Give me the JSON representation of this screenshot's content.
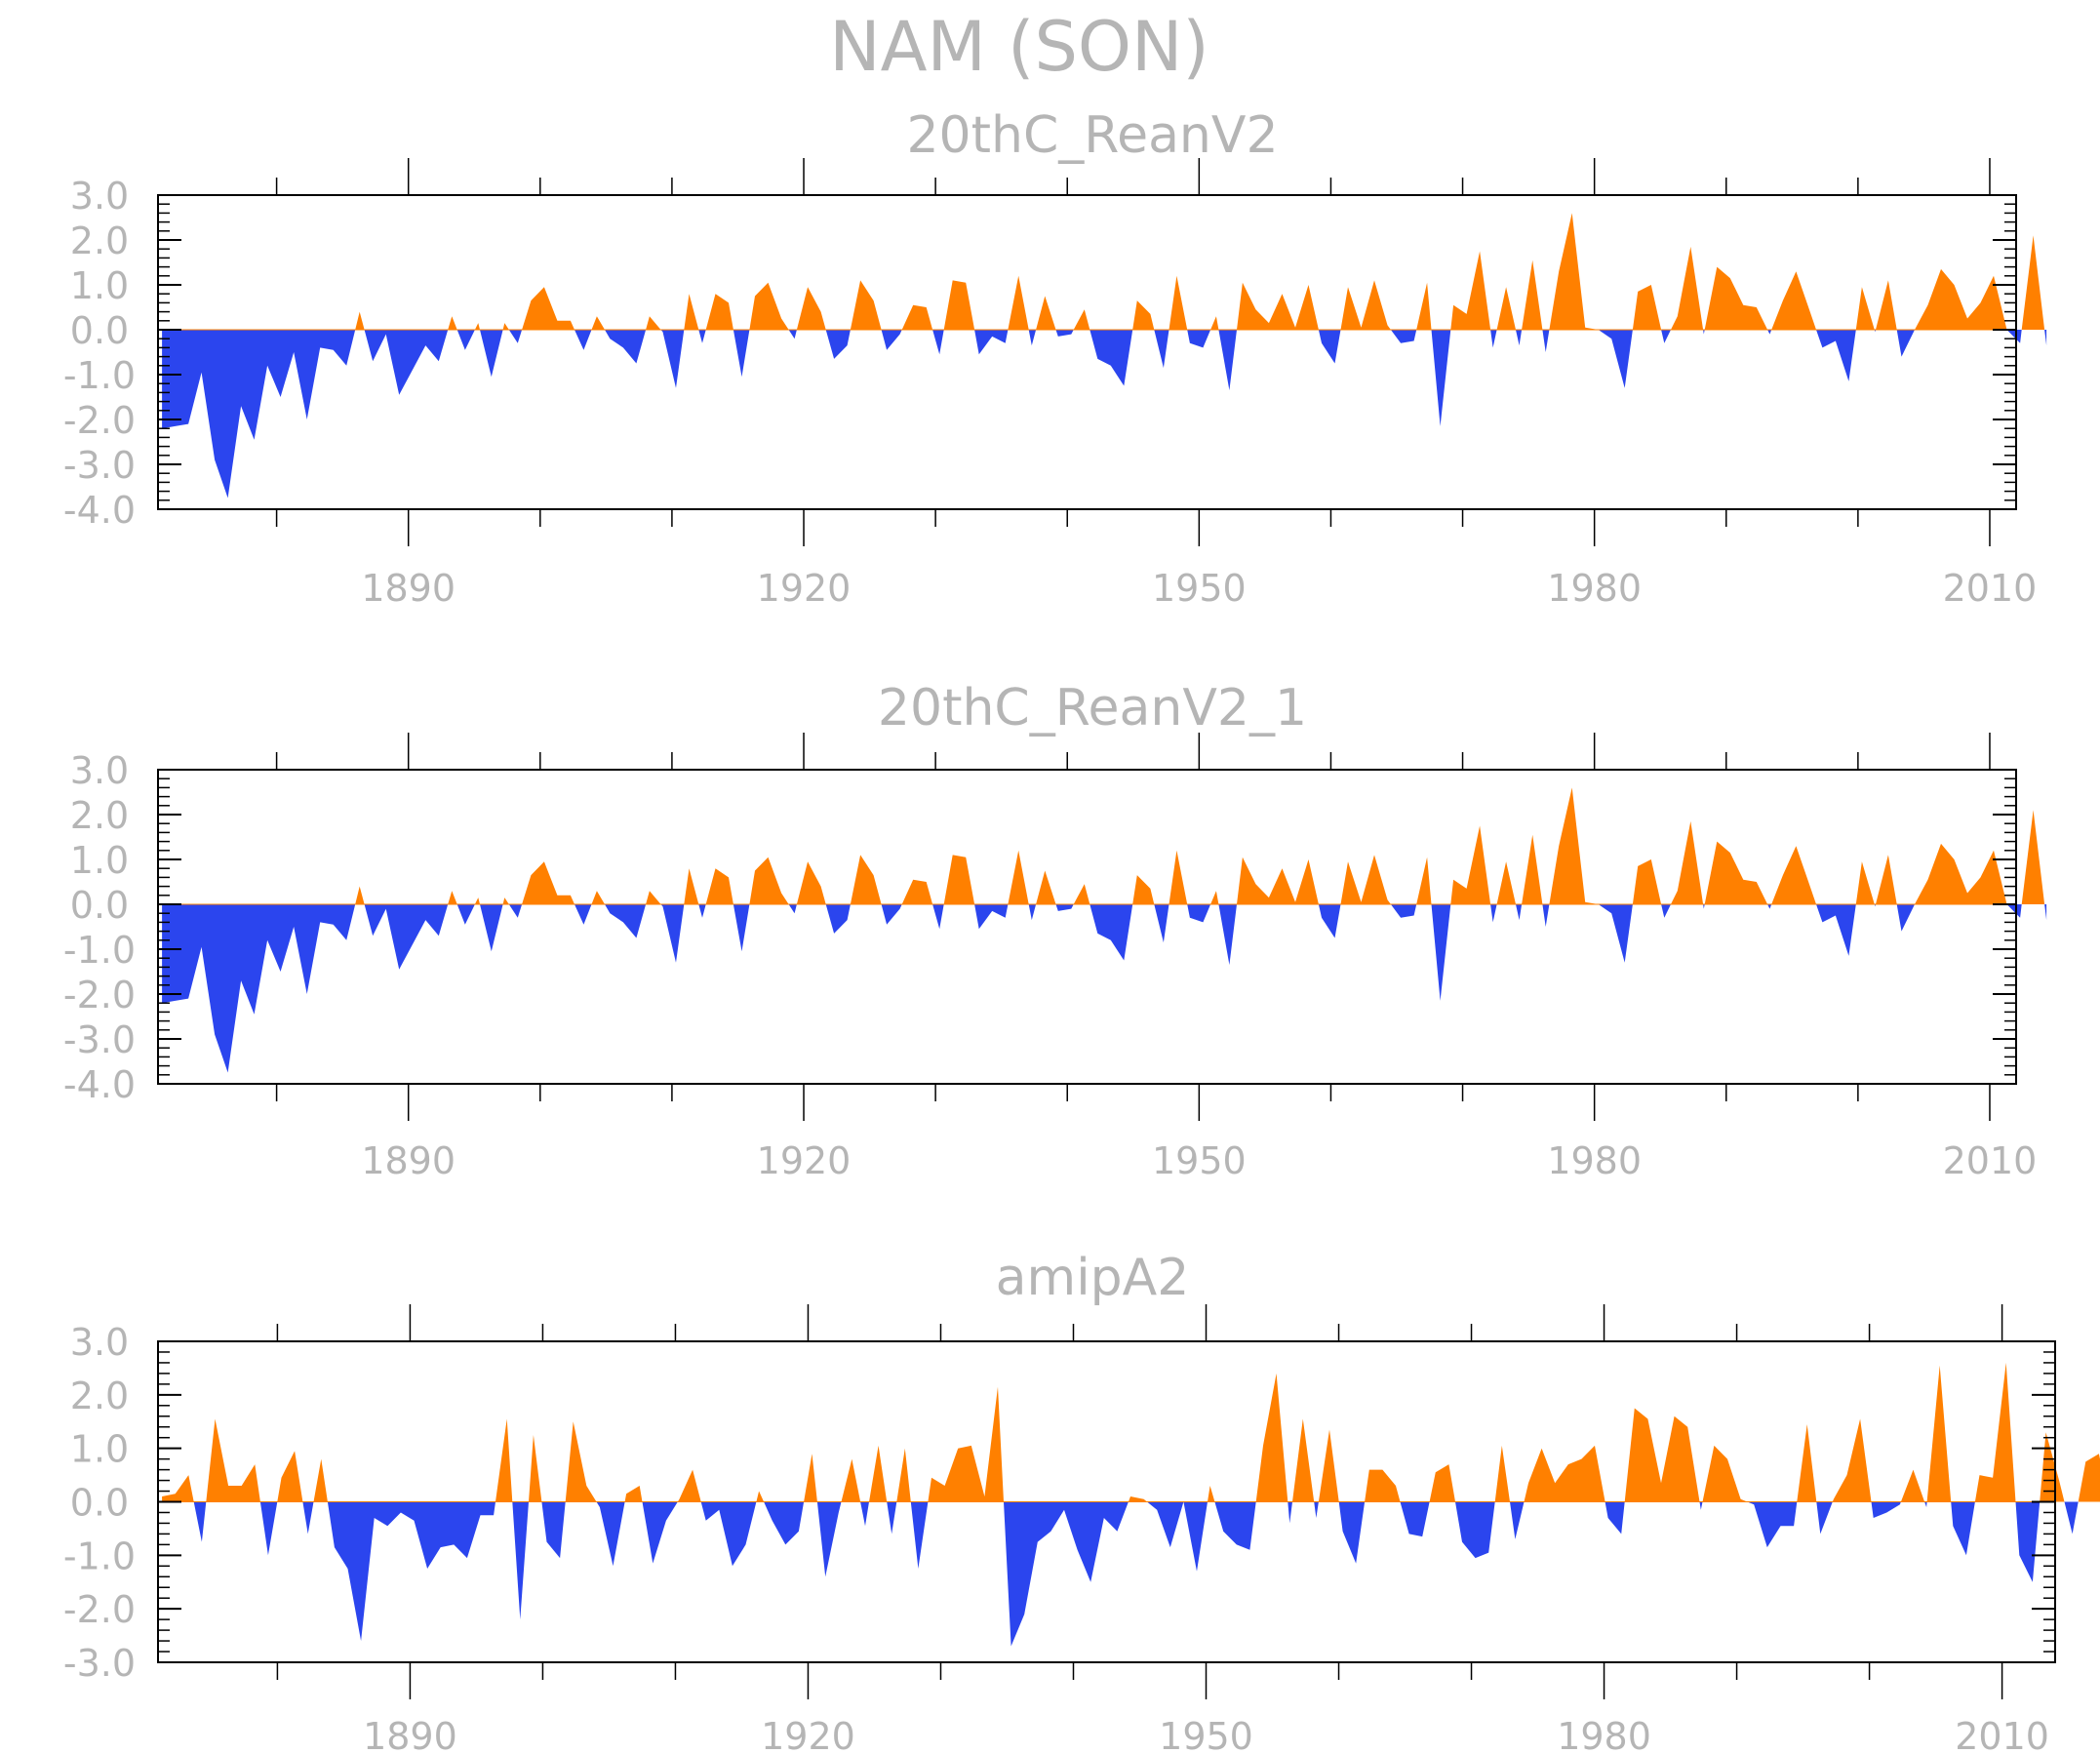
{
  "title": "NAM (SON)",
  "colors": {
    "positive": "#ff8000",
    "negative": "#2b45ee",
    "axis": "#000000",
    "text": "#b5b5b5"
  },
  "chart_data": [
    {
      "type": "area",
      "title": "20thC_ReanV2",
      "x_start": 1871,
      "xlim": [
        1871,
        2012
      ],
      "x_ticks": [
        1890,
        1920,
        1950,
        1980,
        2010
      ],
      "ylim": [
        -4.0,
        3.0
      ],
      "y_ticks": [
        "3.0",
        "2.0",
        "1.0",
        "0.0",
        "-1.0",
        "-2.0",
        "-3.0",
        "-4.0"
      ],
      "values": [
        -2.2,
        -2.15,
        -2.1,
        -0.95,
        -2.9,
        -3.75,
        -1.7,
        -2.45,
        -0.8,
        -1.5,
        -0.5,
        -2.0,
        -0.4,
        -0.45,
        -0.8,
        0.4,
        -0.7,
        -0.1,
        -1.45,
        -0.9,
        -0.35,
        -0.7,
        0.3,
        -0.45,
        0.15,
        -1.05,
        0.15,
        -0.3,
        0.65,
        0.95,
        0.2,
        0.2,
        -0.45,
        0.3,
        -0.2,
        -0.4,
        -0.75,
        0.3,
        -0.05,
        -1.3,
        0.8,
        -0.3,
        0.8,
        0.6,
        -1.05,
        0.75,
        1.05,
        0.25,
        -0.2,
        0.95,
        0.4,
        -0.65,
        -0.35,
        1.1,
        0.65,
        -0.45,
        -0.1,
        0.55,
        0.5,
        -0.55,
        1.1,
        1.05,
        -0.55,
        -0.15,
        -0.3,
        1.2,
        -0.35,
        0.75,
        -0.15,
        -0.1,
        0.45,
        -0.65,
        -0.8,
        -1.25,
        0.65,
        0.35,
        -0.85,
        1.2,
        -0.3,
        -0.4,
        0.3,
        -1.35,
        1.05,
        0.45,
        0.15,
        0.8,
        0.05,
        1.0,
        -0.3,
        -0.75,
        0.95,
        0.05,
        1.1,
        0.1,
        -0.3,
        -0.25,
        1.05,
        -2.15,
        0.55,
        0.35,
        1.75,
        -0.4,
        0.95,
        -0.35,
        1.55,
        -0.5,
        1.3,
        2.6,
        0.05,
        0.0,
        -0.2,
        -1.3,
        0.85,
        1.0,
        -0.3,
        0.3,
        1.85,
        -0.1,
        1.4,
        1.15,
        0.55,
        0.5,
        -0.1,
        0.65,
        1.3,
        0.45,
        -0.4,
        -0.25,
        -1.15,
        0.95,
        -0.05,
        1.1,
        -0.6,
        0.0,
        0.55,
        1.35,
        1.0,
        0.25,
        0.6,
        1.2,
        0.0,
        -0.3,
        2.1,
        -0.35
      ]
    },
    {
      "type": "area",
      "title": "20thC_ReanV2_1",
      "x_start": 1871,
      "xlim": [
        1871,
        2012
      ],
      "x_ticks": [
        1890,
        1920,
        1950,
        1980,
        2010
      ],
      "ylim": [
        -4.0,
        3.0
      ],
      "y_ticks": [
        "3.0",
        "2.0",
        "1.0",
        "0.0",
        "-1.0",
        "-2.0",
        "-3.0",
        "-4.0"
      ],
      "values": [
        -2.2,
        -2.15,
        -2.1,
        -0.95,
        -2.9,
        -3.75,
        -1.7,
        -2.45,
        -0.8,
        -1.5,
        -0.5,
        -2.0,
        -0.4,
        -0.45,
        -0.8,
        0.4,
        -0.7,
        -0.1,
        -1.45,
        -0.9,
        -0.35,
        -0.7,
        0.3,
        -0.45,
        0.15,
        -1.05,
        0.15,
        -0.3,
        0.65,
        0.95,
        0.2,
        0.2,
        -0.45,
        0.3,
        -0.2,
        -0.4,
        -0.75,
        0.3,
        -0.05,
        -1.3,
        0.8,
        -0.3,
        0.8,
        0.6,
        -1.05,
        0.75,
        1.05,
        0.25,
        -0.2,
        0.95,
        0.4,
        -0.65,
        -0.35,
        1.1,
        0.65,
        -0.45,
        -0.1,
        0.55,
        0.5,
        -0.55,
        1.1,
        1.05,
        -0.55,
        -0.15,
        -0.3,
        1.2,
        -0.35,
        0.75,
        -0.15,
        -0.1,
        0.45,
        -0.65,
        -0.8,
        -1.25,
        0.65,
        0.35,
        -0.85,
        1.2,
        -0.3,
        -0.4,
        0.3,
        -1.35,
        1.05,
        0.45,
        0.15,
        0.8,
        0.05,
        1.0,
        -0.3,
        -0.75,
        0.95,
        0.05,
        1.1,
        0.1,
        -0.3,
        -0.25,
        1.05,
        -2.15,
        0.55,
        0.35,
        1.75,
        -0.4,
        0.95,
        -0.35,
        1.55,
        -0.5,
        1.3,
        2.6,
        0.05,
        0.0,
        -0.2,
        -1.3,
        0.85,
        1.0,
        -0.3,
        0.3,
        1.85,
        -0.1,
        1.4,
        1.15,
        0.55,
        0.5,
        -0.1,
        0.65,
        1.3,
        0.45,
        -0.4,
        -0.25,
        -1.15,
        0.95,
        -0.05,
        1.1,
        -0.6,
        0.0,
        0.55,
        1.35,
        1.0,
        0.25,
        0.6,
        1.2,
        0.0,
        -0.3,
        2.1,
        -0.35
      ]
    },
    {
      "type": "area",
      "title": "amipA2",
      "x_start": 1871,
      "xlim": [
        1871,
        2014
      ],
      "x_ticks": [
        1890,
        1920,
        1950,
        1980,
        2010
      ],
      "ylim": [
        -3.0,
        3.0
      ],
      "y_ticks": [
        "3.0",
        "2.0",
        "1.0",
        "0.0",
        "-1.0",
        "-2.0",
        "-3.0"
      ],
      "values": [
        0.1,
        0.15,
        0.5,
        -0.75,
        1.55,
        0.3,
        0.3,
        0.7,
        -1.0,
        0.45,
        0.95,
        -0.6,
        0.8,
        -0.85,
        -1.25,
        -2.6,
        -0.3,
        -0.45,
        -0.2,
        -0.35,
        -1.25,
        -0.85,
        -0.8,
        -1.05,
        -0.25,
        -0.25,
        1.55,
        -2.2,
        1.25,
        -0.75,
        -1.05,
        1.5,
        0.3,
        -0.1,
        -1.2,
        0.15,
        0.3,
        -1.15,
        -0.35,
        0.05,
        0.6,
        -0.35,
        -0.15,
        -1.2,
        -0.8,
        0.2,
        -0.35,
        -0.8,
        -0.55,
        0.9,
        -1.4,
        -0.2,
        0.8,
        -0.45,
        1.05,
        -0.6,
        1.0,
        -1.25,
        0.45,
        0.3,
        1.0,
        1.05,
        0.1,
        2.15,
        -2.7,
        -2.1,
        -0.75,
        -0.55,
        -0.15,
        -0.9,
        -1.5,
        -0.3,
        -0.55,
        0.1,
        0.05,
        -0.15,
        -0.85,
        0.0,
        -1.3,
        0.3,
        -0.55,
        -0.8,
        -0.9,
        1.05,
        2.4,
        -0.4,
        1.55,
        -0.3,
        1.35,
        -0.55,
        -1.15,
        0.6,
        0.6,
        0.3,
        -0.6,
        -0.65,
        0.55,
        0.7,
        -0.75,
        -1.05,
        -0.95,
        1.05,
        -0.7,
        0.35,
        1.0,
        0.35,
        0.7,
        0.8,
        1.05,
        -0.3,
        -0.6,
        1.75,
        1.55,
        0.35,
        1.6,
        1.4,
        -0.15,
        1.05,
        0.8,
        0.05,
        -0.05,
        -0.85,
        -0.45,
        -0.45,
        1.45,
        -0.6,
        0.05,
        0.5,
        1.55,
        -0.3,
        -0.2,
        -0.05,
        0.6,
        -0.1,
        2.55,
        -0.45,
        -1.0,
        0.5,
        0.45,
        2.6,
        -1.0,
        -1.5,
        1.3,
        0.4,
        -0.6,
        0.75,
        0.9,
        -0.3
      ]
    }
  ]
}
